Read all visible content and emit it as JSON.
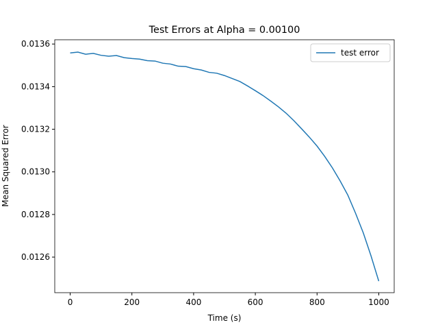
{
  "chart_data": {
    "type": "line",
    "title": "Test Errors at Alpha = 0.00100",
    "x_label": "Time (s)",
    "y_label": "Mean Squared Error",
    "x": [
      0,
      25,
      50,
      75,
      100,
      125,
      150,
      175,
      200,
      225,
      250,
      275,
      300,
      325,
      350,
      375,
      400,
      425,
      450,
      475,
      500,
      525,
      550,
      575,
      600,
      625,
      650,
      675,
      700,
      725,
      750,
      775,
      800,
      825,
      850,
      875,
      900,
      925,
      950,
      975,
      1000
    ],
    "series": [
      {
        "name": "test error",
        "color": "#1f77b4",
        "values": [
          0.013558,
          0.013562,
          0.013552,
          0.013556,
          0.013547,
          0.013543,
          0.013546,
          0.013536,
          0.013532,
          0.013529,
          0.013522,
          0.01352,
          0.01351,
          0.013506,
          0.013496,
          0.013494,
          0.013484,
          0.013478,
          0.013467,
          0.013463,
          0.013452,
          0.013438,
          0.013424,
          0.013403,
          0.013381,
          0.013358,
          0.013332,
          0.013305,
          0.013275,
          0.01324,
          0.013202,
          0.013163,
          0.013121,
          0.013072,
          0.013018,
          0.012957,
          0.01289,
          0.012805,
          0.012713,
          0.012605,
          0.012487
        ]
      }
    ],
    "xlim": [
      -50,
      1050
    ],
    "ylim": [
      0.012433,
      0.01362
    ],
    "xticks": [
      0,
      200,
      400,
      600,
      800,
      1000
    ],
    "yticks": [
      0.0126,
      0.0128,
      {
        "value": 0.013,
        "label": "0.0130"
      },
      0.0132,
      0.0134,
      0.0136
    ],
    "legend": "upper right"
  }
}
